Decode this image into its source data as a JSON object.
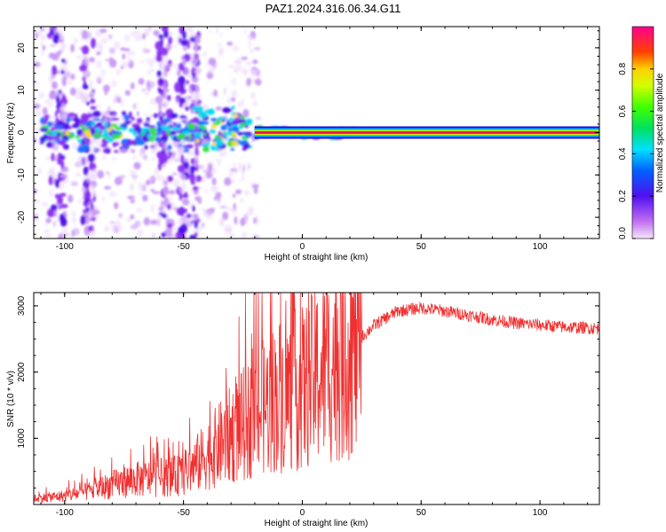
{
  "title": "PAZ1.2024.316.06.34.G11",
  "chart_data": [
    {
      "type": "heatmap",
      "xlabel": "Height of straight line (km)",
      "ylabel": "Frequency (Hz)",
      "xlim": [
        -113,
        125
      ],
      "ylim": [
        -25,
        25
      ],
      "xticks": [
        -100,
        -50,
        0,
        50,
        100
      ],
      "yticks": [
        20,
        10,
        0,
        -10,
        -20
      ],
      "colorbar": {
        "label": "Normalized spectral amplitude",
        "range": [
          0,
          1
        ],
        "ticks": [
          "0.0",
          "0.2",
          "0.4",
          "0.6",
          "0.8"
        ]
      },
      "features": [
        {
          "description": "scattered weak-amplitude noise",
          "x_range": [
            -113,
            -20
          ],
          "freq_range": [
            -25,
            25
          ]
        },
        {
          "description": "broad band of moderate amplitude around 0 Hz",
          "x_range": [
            -113,
            -20
          ],
          "freq_range": [
            -5,
            5
          ]
        },
        {
          "description": "narrow band of maximum amplitude centered on 0 Hz",
          "x_range": [
            -20,
            125
          ],
          "freq_range": [
            -1.5,
            1.5
          ],
          "amplitude": 1.0
        }
      ]
    },
    {
      "type": "line",
      "xlabel": "Height of straight line (km)",
      "ylabel": "SNR (10 * v/v)",
      "xlim": [
        -113,
        125
      ],
      "ylim": [
        0,
        3200
      ],
      "xticks": [
        -100,
        -50,
        0,
        50,
        100
      ],
      "yticks": [
        1000,
        2000,
        3000
      ],
      "color": "#f03030",
      "trend": {
        "x": [
          -113,
          -100,
          -90,
          -80,
          -70,
          -60,
          -50,
          -40,
          -30,
          -20,
          -10,
          0,
          10,
          20,
          30,
          40,
          50,
          60,
          70,
          80,
          90,
          100,
          110,
          125
        ],
        "y": [
          90,
          130,
          200,
          300,
          380,
          400,
          450,
          750,
          1050,
          1350,
          1650,
          1750,
          2050,
          2350,
          2700,
          2920,
          2970,
          2920,
          2860,
          2790,
          2740,
          2710,
          2680,
          2660
        ]
      }
    }
  ]
}
